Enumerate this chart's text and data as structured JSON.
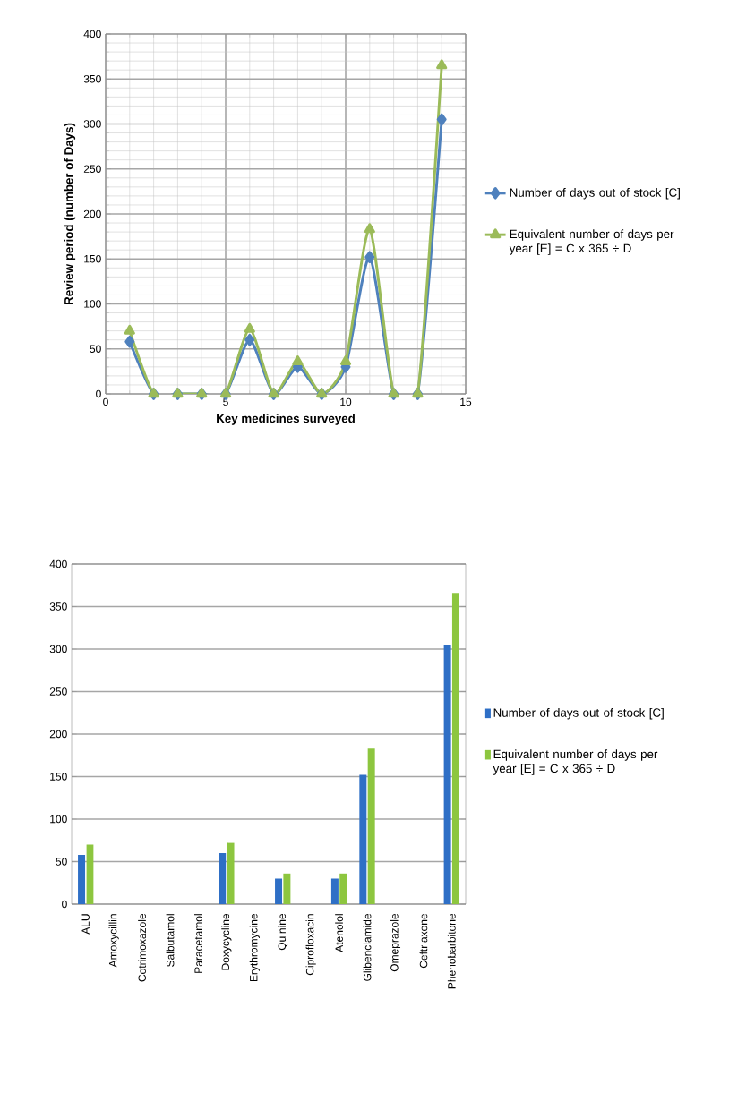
{
  "chart_data": [
    {
      "type": "line",
      "xlabel": "Key medicines surveyed",
      "ylabel": "Review period (number of Days)",
      "x": [
        1,
        2,
        3,
        4,
        5,
        6,
        7,
        8,
        9,
        10,
        11,
        12,
        13,
        14
      ],
      "xlim": [
        0,
        15
      ],
      "xticks": [
        0,
        5,
        10,
        15
      ],
      "ylim": [
        0,
        400
      ],
      "yticks": [
        0,
        50,
        100,
        150,
        200,
        250,
        300,
        350,
        400
      ],
      "grid": true,
      "legend": "right",
      "line_style": "solid",
      "series": [
        {
          "name": "Number of days out of stock [C]",
          "color": "#4f81bd",
          "marker": "diamond",
          "values": [
            58,
            0,
            0,
            0,
            0,
            60,
            0,
            30,
            0,
            30,
            152,
            0,
            0,
            305
          ]
        },
        {
          "name": "Equivalent number of days per year [E] = C x 365 ÷ D",
          "color": "#9bbb59",
          "marker": "triangle",
          "values": [
            70,
            0,
            0,
            0,
            0,
            72,
            0,
            36,
            0,
            36,
            183,
            0,
            0,
            365
          ]
        }
      ]
    },
    {
      "type": "bar",
      "categories": [
        "ALU",
        "Amoxycillin",
        "Cotrimoxazole",
        "Salbutamol",
        "Paracetamol",
        "Doxycycline",
        "Erythromycine",
        "Quinine",
        "Ciprofloxacin",
        "Atenolol",
        "Glibenclamide",
        "Omeprazole",
        "Ceftriaxone",
        "Phenobarbitone"
      ],
      "ylim": [
        0,
        400
      ],
      "yticks": [
        0,
        50,
        100,
        150,
        200,
        250,
        300,
        350,
        400
      ],
      "grid": "y",
      "legend": "right",
      "series": [
        {
          "name": "Number of days out of stock [C]",
          "color": "#2e6fc6",
          "values": [
            58,
            0,
            0,
            0,
            0,
            60,
            0,
            30,
            0,
            30,
            152,
            0,
            0,
            305
          ]
        },
        {
          "name": "Equivalent number of days per year [E] = C x 365 ÷ D",
          "color": "#8dc63f",
          "values": [
            70,
            0,
            0,
            0,
            0,
            72,
            0,
            36,
            0,
            36,
            183,
            0,
            0,
            365
          ]
        }
      ]
    }
  ]
}
